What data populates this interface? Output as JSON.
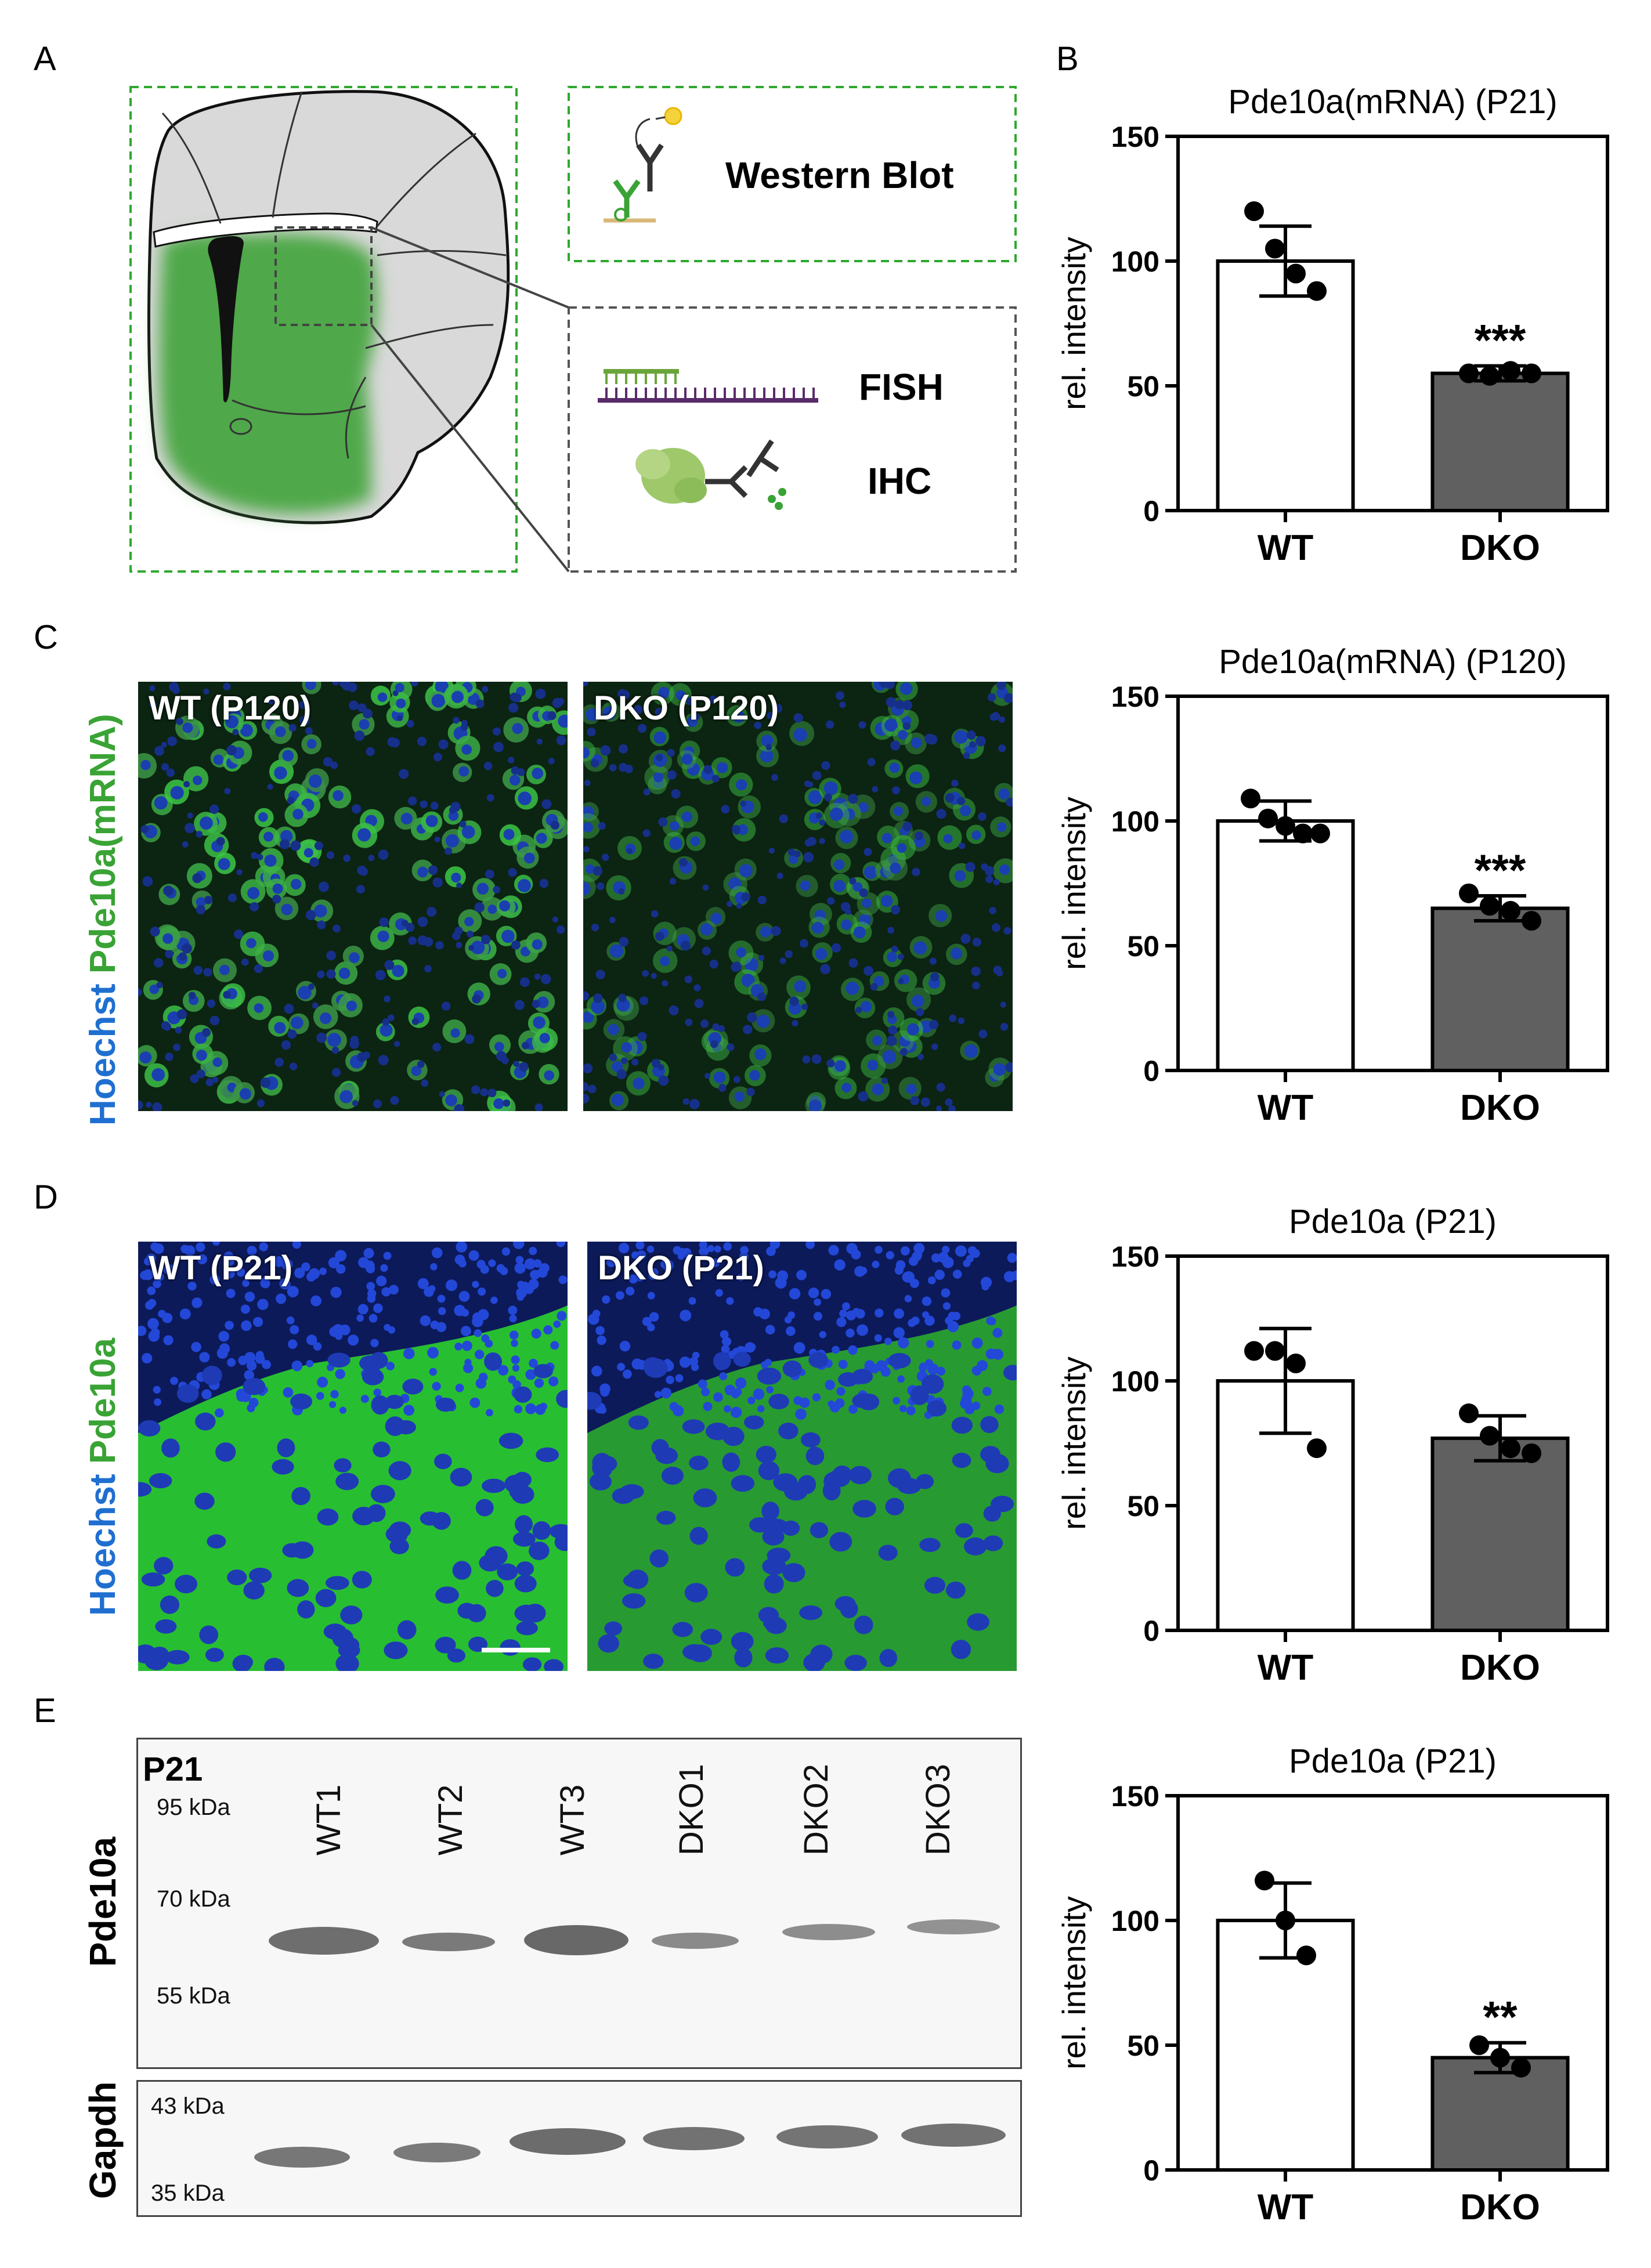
{
  "panels": {
    "A": "A",
    "B": "B",
    "C": "C",
    "D": "D",
    "E": "E"
  },
  "schematic": {
    "western_blot_label": "Western Blot",
    "fish_label": "FISH",
    "ihc_label": "IHC"
  },
  "micrographs": {
    "c_stain_hoechst": "Hoechst",
    "c_stain_target": "Pde10a(mRNA)",
    "c_wt_label": "WT (P120)",
    "c_dko_label": "DKO (P120)",
    "d_stain_hoechst": "Hoechst",
    "d_stain_target": "Pde10a",
    "d_wt_label": "WT (P21)",
    "d_dko_label": "DKO (P21)",
    "colors": {
      "hoechst": "#1f6fd0",
      "target": "#3aa335"
    }
  },
  "blot": {
    "timepoint": "P21",
    "top_protein": "Pde10a",
    "bottom_protein": "Gapdh",
    "lanes": [
      "WT1",
      "WT2",
      "WT3",
      "DKO1",
      "DKO2",
      "DKO3"
    ],
    "top_markers": [
      "95 kDa",
      "70 kDa",
      "55 kDa"
    ],
    "bottom_markers": [
      "43 kDa",
      "35 kDa"
    ]
  },
  "chart_data": [
    {
      "type": "bar",
      "title": "Pde10a(mRNA) (P21)",
      "ylabel": "rel. intensity",
      "categories": [
        "WT",
        "DKO"
      ],
      "values": [
        100,
        55
      ],
      "errors": [
        14,
        3
      ],
      "points": [
        [
          120,
          105,
          95,
          88
        ],
        [
          55,
          54,
          56,
          55
        ]
      ],
      "significance": [
        "",
        "***"
      ],
      "ylim": [
        0,
        150
      ],
      "yticks": [
        0,
        50,
        100,
        150
      ],
      "colors": [
        "#ffffff",
        "#606060"
      ]
    },
    {
      "type": "bar",
      "title": "Pde10a(mRNA) (P120)",
      "ylabel": "rel. intensity",
      "categories": [
        "WT",
        "DKO"
      ],
      "values": [
        100,
        65
      ],
      "errors": [
        8,
        5
      ],
      "points": [
        [
          109,
          101,
          98,
          95,
          95
        ],
        [
          71,
          66,
          64,
          60
        ]
      ],
      "significance": [
        "",
        "***"
      ],
      "ylim": [
        0,
        150
      ],
      "yticks": [
        0,
        50,
        100,
        150
      ],
      "colors": [
        "#ffffff",
        "#606060"
      ]
    },
    {
      "type": "bar",
      "title": "Pde10a (P21)",
      "ylabel": "rel. intensity",
      "categories": [
        "WT",
        "DKO"
      ],
      "values": [
        100,
        77
      ],
      "errors": [
        21,
        9
      ],
      "points": [
        [
          112,
          112,
          107,
          73
        ],
        [
          87,
          78,
          73,
          71
        ]
      ],
      "significance": [
        "",
        ""
      ],
      "ylim": [
        0,
        150
      ],
      "yticks": [
        0,
        50,
        100,
        150
      ],
      "colors": [
        "#ffffff",
        "#606060"
      ]
    },
    {
      "type": "bar",
      "title": "Pde10a (P21)",
      "ylabel": "rel. intensity",
      "categories": [
        "WT",
        "DKO"
      ],
      "values": [
        100,
        45
      ],
      "errors": [
        15,
        6
      ],
      "points": [
        [
          116,
          100,
          86
        ],
        [
          50,
          45,
          41
        ]
      ],
      "significance": [
        "",
        "**"
      ],
      "ylim": [
        0,
        150
      ],
      "yticks": [
        0,
        50,
        100,
        150
      ],
      "colors": [
        "#ffffff",
        "#606060"
      ]
    }
  ]
}
